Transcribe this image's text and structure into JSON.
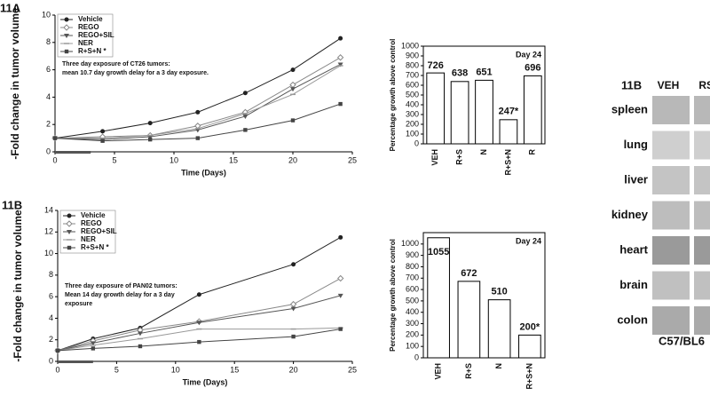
{
  "panel_labels": [
    "11A",
    "11B",
    "11B"
  ],
  "chart_data": [
    {
      "type": "line",
      "x_label": "Time (Days)",
      "y_label": "-Fold change in tumor volume",
      "annotation": [
        "Three day exposure of CT26 tumors:",
        "mean 10.7 day growth delay for a 3 day exposure."
      ],
      "xlim": [
        0,
        25
      ],
      "xticks": [
        0,
        5,
        10,
        15,
        20,
        25
      ],
      "ylim": [
        0,
        10
      ],
      "yticks": [
        0,
        2,
        4,
        6,
        8,
        10
      ],
      "exposure": [
        0,
        3
      ],
      "legend": "upper left",
      "x": [
        0,
        4,
        8,
        12,
        16,
        20,
        24
      ],
      "series": [
        {
          "name": "Vehicle",
          "color": "#222222",
          "marker": "circle",
          "values": [
            1,
            1.5,
            2.1,
            2.9,
            4.3,
            6.0,
            8.3
          ]
        },
        {
          "name": "REGO",
          "color": "#888888",
          "marker": "diamond",
          "values": [
            1,
            1.1,
            1.2,
            1.9,
            2.9,
            4.9,
            6.9
          ]
        },
        {
          "name": "REGO+SIL",
          "color": "#555555",
          "marker": "triangle",
          "values": [
            1,
            0.9,
            1.1,
            1.6,
            2.6,
            4.6,
            6.4
          ]
        },
        {
          "name": "NER",
          "color": "#999999",
          "marker": "dash",
          "values": [
            1,
            1.0,
            1.2,
            1.7,
            2.8,
            4.2,
            6.3
          ]
        },
        {
          "name": "R+S+N *",
          "color": "#444444",
          "marker": "square",
          "values": [
            1,
            0.8,
            0.9,
            1.0,
            1.6,
            2.3,
            3.5
          ]
        }
      ]
    },
    {
      "type": "bar",
      "y_label": "Percentage growth above control",
      "annotation": "Day 24",
      "categories": [
        "VEH",
        "R+S",
        "N",
        "R+S+N",
        "R"
      ],
      "values": [
        726,
        638,
        651,
        247,
        696
      ],
      "value_labels": [
        "726",
        "638",
        "651",
        "247*",
        "696"
      ],
      "color": "#ffffff",
      "ylim": [
        0,
        1000
      ],
      "yticks": [
        0,
        100,
        200,
        300,
        400,
        500,
        600,
        700,
        800,
        900,
        1000
      ]
    },
    {
      "type": "line",
      "x_label": "Time (Days)",
      "y_label": "-Fold change in tumor volume",
      "annotation": [
        "Three day exposure of PAN02 tumors:",
        "Mean 14 day growth delay for a 3 day",
        "exposure"
      ],
      "xlim": [
        0,
        25
      ],
      "xticks": [
        0,
        5,
        10,
        15,
        20,
        25
      ],
      "ylim": [
        0,
        14
      ],
      "yticks": [
        0,
        2,
        4,
        6,
        8,
        10,
        12,
        14
      ],
      "exposure": [
        0,
        3
      ],
      "legend": "upper left",
      "x": [
        0,
        3,
        7,
        12,
        20,
        24
      ],
      "series": [
        {
          "name": "Vehicle",
          "color": "#222222",
          "marker": "circle",
          "values": [
            1,
            2.1,
            3.1,
            6.2,
            9.0,
            11.5
          ]
        },
        {
          "name": "REGO",
          "color": "#888888",
          "marker": "diamond",
          "values": [
            1,
            1.9,
            2.9,
            3.7,
            5.3,
            7.7
          ]
        },
        {
          "name": "REGO+SIL",
          "color": "#555555",
          "marker": "triangle",
          "values": [
            1,
            1.7,
            2.6,
            3.6,
            4.9,
            6.1
          ]
        },
        {
          "name": "NER",
          "color": "#999999",
          "marker": "dash",
          "values": [
            1,
            1.5,
            2.1,
            3.0,
            3.0,
            3.1
          ]
        },
        {
          "name": "R+S+N *",
          "color": "#444444",
          "marker": "square",
          "values": [
            1,
            1.2,
            1.4,
            1.8,
            2.3,
            3.0
          ]
        }
      ]
    },
    {
      "type": "bar",
      "y_label": "Percentage growth above control",
      "annotation": "Day 24",
      "categories": [
        "VEH",
        "R+S",
        "N",
        "R+S+N"
      ],
      "values": [
        1055,
        672,
        510,
        200
      ],
      "value_labels": [
        "1055",
        "672",
        "510",
        "200*"
      ],
      "color": "#ffffff",
      "ylim": [
        0,
        1100
      ],
      "yticks": [
        0,
        100,
        200,
        300,
        400,
        500,
        600,
        700,
        800,
        900,
        1000
      ]
    }
  ],
  "histology": {
    "columns": [
      "VEH",
      "RSN"
    ],
    "rows": [
      "spleen",
      "lung",
      "liver",
      "kidney",
      "heart",
      "brain",
      "colon"
    ],
    "footer": "C57/BL6"
  }
}
